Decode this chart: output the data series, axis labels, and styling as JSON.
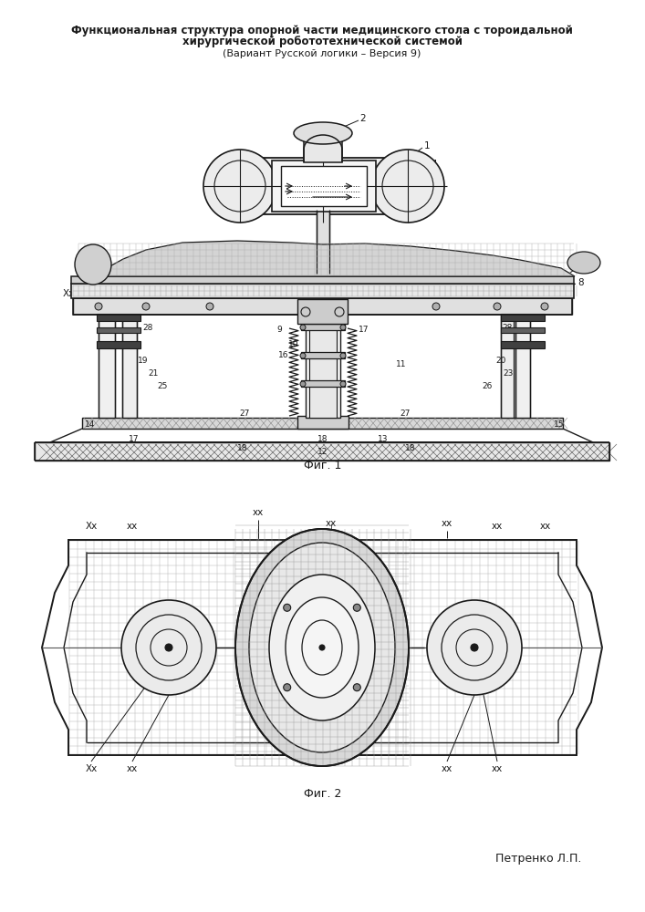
{
  "title_line1": "Функциональная структура опорной части медицинского стола с тороидальной",
  "title_line2": "хирургической робототехнической системой",
  "title_line3": "(Вариант Русской логики – Версия 9)",
  "fig1_label": "Фиг. 1",
  "fig2_label": "Фиг. 2",
  "author": "Петренко Л.П.",
  "bg_color": "#ffffff",
  "lc": "#1a1a1a"
}
